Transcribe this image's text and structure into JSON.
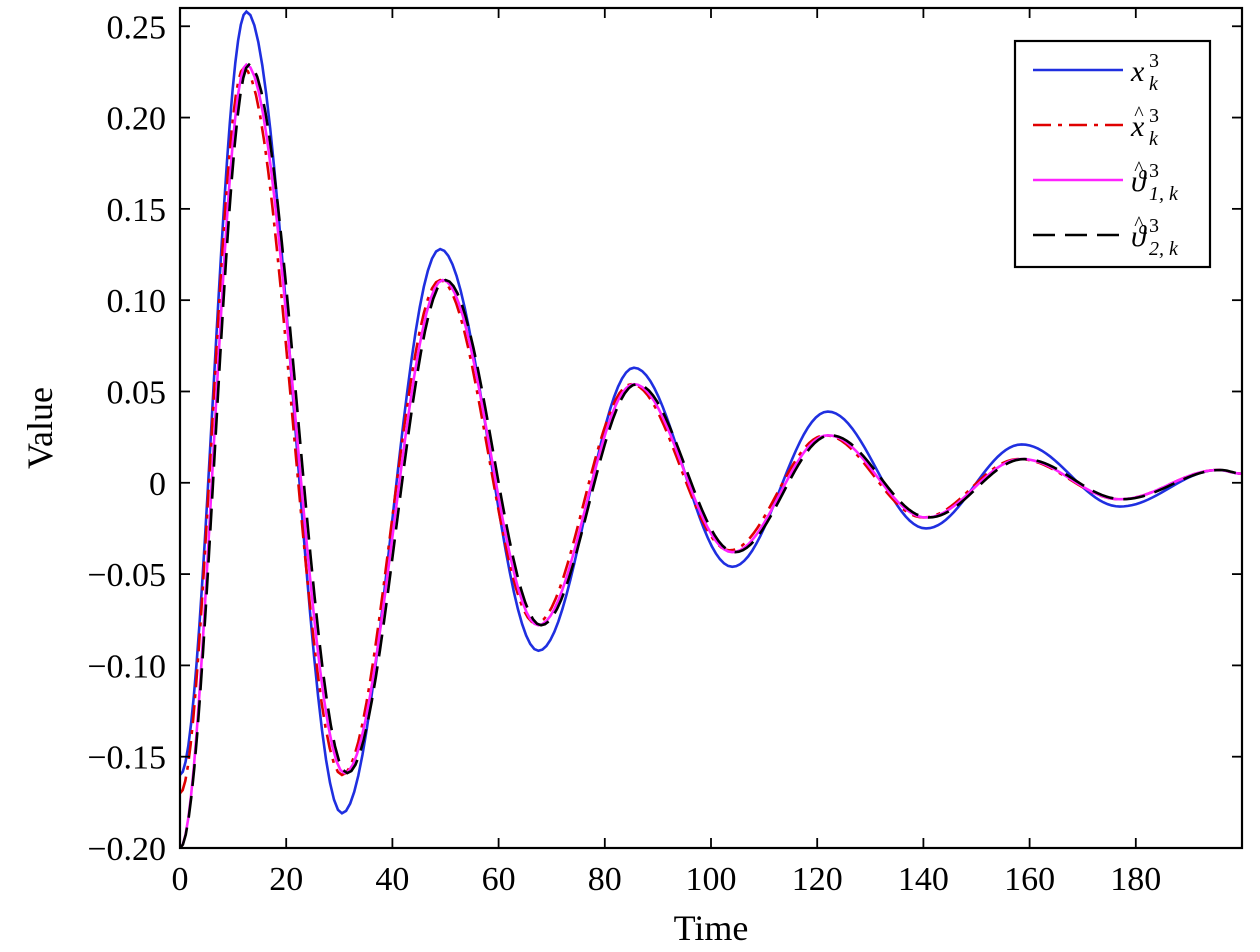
{
  "chart_data": {
    "type": "line",
    "xlabel": "Time",
    "ylabel": "Value",
    "xlim": [
      0,
      200
    ],
    "ylim": [
      -0.2,
      0.26
    ],
    "xticks": [
      0,
      20,
      40,
      60,
      80,
      100,
      120,
      140,
      160,
      180
    ],
    "xtick_labels": [
      "0",
      "20",
      "40",
      "60",
      "80",
      "100",
      "120",
      "140",
      "160",
      "180"
    ],
    "yticks": [
      -0.2,
      -0.15,
      -0.1,
      -0.05,
      0,
      0.05,
      0.1,
      0.15,
      0.2,
      0.25
    ],
    "ytick_labels": [
      "−0.20",
      "−0.15",
      "−0.10",
      "−0.05",
      "0",
      "0.05",
      "0.10",
      "0.15",
      "0.20",
      "0.25"
    ],
    "grid": false,
    "legend_position": "top-right",
    "series": [
      {
        "name": "x",
        "sup": "3",
        "sub": "k",
        "accent": "",
        "color": "#1f2fe0",
        "dash": "solid",
        "x": [
          0,
          12.5,
          30.5,
          49,
          67.5,
          85.5,
          104,
          122,
          140.5,
          158.5,
          177,
          195.5,
          200
        ],
        "y": [
          -0.16,
          0.258,
          -0.181,
          0.128,
          -0.092,
          0.063,
          -0.046,
          0.039,
          -0.025,
          0.021,
          -0.013,
          0.007,
          0.005
        ]
      },
      {
        "name": "x",
        "sup": "3",
        "sub": "k",
        "accent": "hat",
        "color": "#e00000",
        "dash": "dashdot",
        "x": [
          0,
          12,
          30.5,
          49,
          67,
          85,
          103.5,
          121.5,
          140,
          158,
          177,
          195.5,
          200
        ],
        "y": [
          -0.17,
          0.227,
          -0.16,
          0.111,
          -0.077,
          0.054,
          -0.037,
          0.026,
          -0.019,
          0.013,
          -0.009,
          0.007,
          0.005
        ]
      },
      {
        "name": "ϑ",
        "sup": "3",
        "sub": "1, k",
        "accent": "hat",
        "color": "#ff22ff",
        "dash": "solid",
        "x": [
          0,
          12.5,
          31,
          49.5,
          67.5,
          85.5,
          104,
          122,
          140.5,
          158.5,
          177,
          195.5,
          200
        ],
        "y": [
          -0.2,
          0.229,
          -0.159,
          0.111,
          -0.078,
          0.054,
          -0.038,
          0.026,
          -0.019,
          0.013,
          -0.009,
          0.007,
          0.005
        ]
      },
      {
        "name": "ϑ",
        "sup": "3",
        "sub": "2, k",
        "accent": "hat",
        "color": "#000000",
        "dash": "dashed",
        "x": [
          0,
          13,
          31.5,
          50,
          68,
          86,
          104.5,
          122.5,
          141,
          159,
          177.5,
          196,
          200
        ],
        "y": [
          -0.2,
          0.229,
          -0.159,
          0.111,
          -0.078,
          0.054,
          -0.038,
          0.026,
          -0.019,
          0.013,
          -0.009,
          0.007,
          0.005
        ]
      }
    ]
  }
}
